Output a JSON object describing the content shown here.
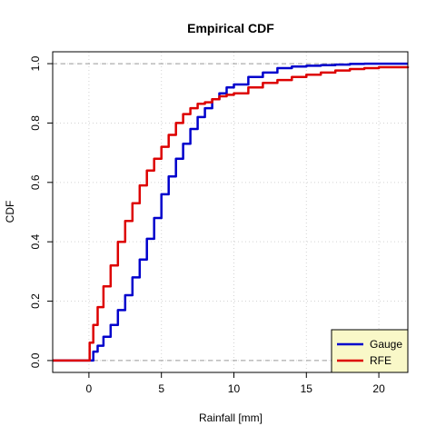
{
  "chart_data": {
    "type": "line",
    "title": "Empirical CDF",
    "xlabel": "Rainfall [mm]",
    "ylabel": "CDF",
    "xlim": [
      -2.5,
      22
    ],
    "ylim": [
      -0.04,
      1.04
    ],
    "x_ticks": [
      0,
      5,
      10,
      15,
      20
    ],
    "y_ticks": [
      0.0,
      0.2,
      0.4,
      0.6,
      0.8,
      1.0
    ],
    "x_tick_labels": [
      "0",
      "5",
      "10",
      "15",
      "20"
    ],
    "y_tick_labels": [
      "0.0",
      "0.2",
      "0.4",
      "0.6",
      "0.8",
      "1.0"
    ],
    "grid": "dotted",
    "reference_lines": [
      0,
      1
    ],
    "legend_position": "bottom-right",
    "legend_background": "#f9f8c8",
    "series": [
      {
        "name": "Gauge",
        "color": "#0000cc",
        "x": [
          -2.5,
          0,
          0.3,
          0.6,
          1,
          1.5,
          2,
          2.5,
          3,
          3.5,
          4,
          4.5,
          5,
          5.5,
          6,
          6.5,
          7,
          7.5,
          8,
          8.5,
          9,
          9.5,
          10,
          11,
          12,
          13,
          14,
          15,
          16,
          17,
          18,
          19,
          20,
          22
        ],
        "y": [
          0,
          0,
          0.03,
          0.05,
          0.08,
          0.12,
          0.17,
          0.22,
          0.28,
          0.34,
          0.41,
          0.48,
          0.56,
          0.62,
          0.68,
          0.73,
          0.78,
          0.82,
          0.85,
          0.88,
          0.9,
          0.92,
          0.93,
          0.955,
          0.97,
          0.985,
          0.99,
          0.993,
          0.995,
          0.997,
          0.999,
          1.0,
          1.0,
          1.0
        ]
      },
      {
        "name": "RFE",
        "color": "#dd0000",
        "x": [
          -2.5,
          0,
          0.05,
          0.3,
          0.6,
          1,
          1.5,
          2,
          2.5,
          3,
          3.5,
          4,
          4.5,
          5,
          5.5,
          6,
          6.5,
          7,
          7.5,
          8,
          8.5,
          9,
          9.5,
          10,
          11,
          12,
          13,
          14,
          15,
          16,
          17,
          18,
          19,
          20,
          22
        ],
        "y": [
          0,
          0,
          0.06,
          0.12,
          0.18,
          0.25,
          0.32,
          0.4,
          0.47,
          0.53,
          0.59,
          0.64,
          0.68,
          0.72,
          0.76,
          0.8,
          0.83,
          0.85,
          0.865,
          0.87,
          0.88,
          0.89,
          0.895,
          0.9,
          0.92,
          0.935,
          0.945,
          0.955,
          0.963,
          0.97,
          0.977,
          0.982,
          0.985,
          0.988,
          0.99
        ]
      }
    ]
  }
}
